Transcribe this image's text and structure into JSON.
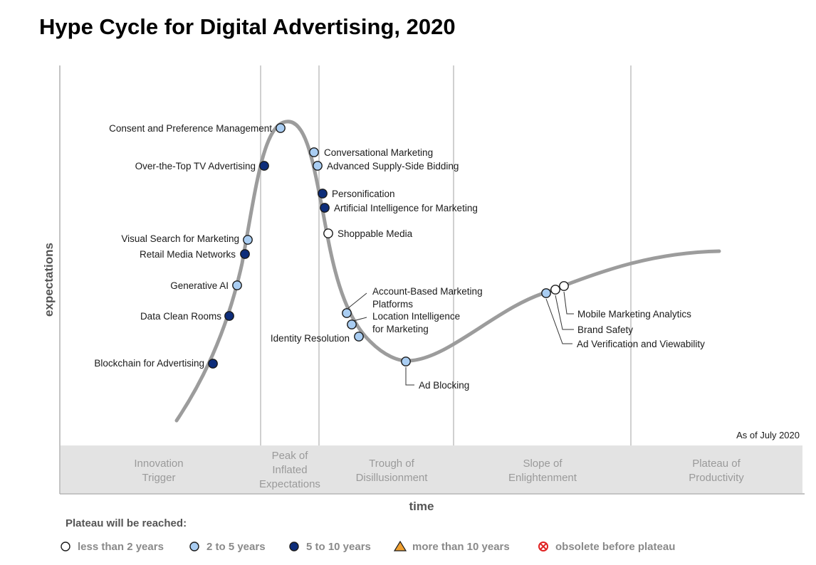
{
  "chart_data": {
    "type": "hype-cycle",
    "title": "Hype Cycle for Digital Advertising, 2020",
    "xlabel": "time",
    "ylabel": "expectations",
    "as_of": "As of July 2020",
    "phases": [
      {
        "lines": [
          "Innovation",
          "Trigger"
        ]
      },
      {
        "lines": [
          "Peak of",
          "Inflated",
          "Expectations"
        ]
      },
      {
        "lines": [
          "Trough of",
          "Disillusionment"
        ]
      },
      {
        "lines": [
          "Slope of",
          "Enlightenment"
        ]
      },
      {
        "lines": [
          "Plateau of",
          "Productivity"
        ]
      }
    ],
    "legend": {
      "heading": "Plateau will be reached:",
      "items": [
        {
          "key": "lt2",
          "label": "less than 2 years",
          "shape": "circle",
          "color": "#ffffff"
        },
        {
          "key": "2to5",
          "label": "2 to 5 years",
          "shape": "circle",
          "color": "#a9cdf2"
        },
        {
          "key": "5to10",
          "label": "5 to 10 years",
          "shape": "circle",
          "color": "#0d2d7a"
        },
        {
          "key": "gt10",
          "label": "more than 10 years",
          "shape": "triangle",
          "color": "#f0a030"
        },
        {
          "key": "obsolete",
          "label": "obsolete before plateau",
          "shape": "cross-circle",
          "color": "#e02020"
        }
      ]
    },
    "points": [
      {
        "name": "Consent and Preference Management",
        "category": "2to5"
      },
      {
        "name": "Over-the-Top TV Advertising",
        "category": "5to10"
      },
      {
        "name": "Conversational Marketing",
        "category": "2to5"
      },
      {
        "name": "Advanced Supply-Side Bidding",
        "category": "2to5"
      },
      {
        "name": "Personification",
        "category": "5to10"
      },
      {
        "name": "Artificial Intelligence for Marketing",
        "category": "5to10"
      },
      {
        "name": "Shoppable Media",
        "category": "lt2"
      },
      {
        "name": "Visual Search for Marketing",
        "category": "2to5"
      },
      {
        "name": "Retail Media Networks",
        "category": "5to10"
      },
      {
        "name": "Generative AI",
        "category": "2to5"
      },
      {
        "name": "Data Clean Rooms",
        "category": "5to10"
      },
      {
        "name": "Blockchain for Advertising",
        "category": "5to10"
      },
      {
        "name": "Account-Based Marketing Platforms",
        "category": "2to5"
      },
      {
        "name": "Location Intelligence for Marketing",
        "category": "2to5"
      },
      {
        "name": "Identity Resolution",
        "category": "2to5"
      },
      {
        "name": "Ad Blocking",
        "category": "2to5"
      },
      {
        "name": "Ad Verification and Viewability",
        "category": "2to5"
      },
      {
        "name": "Brand Safety",
        "category": "lt2"
      },
      {
        "name": "Mobile Marketing Analytics",
        "category": "lt2"
      }
    ]
  }
}
